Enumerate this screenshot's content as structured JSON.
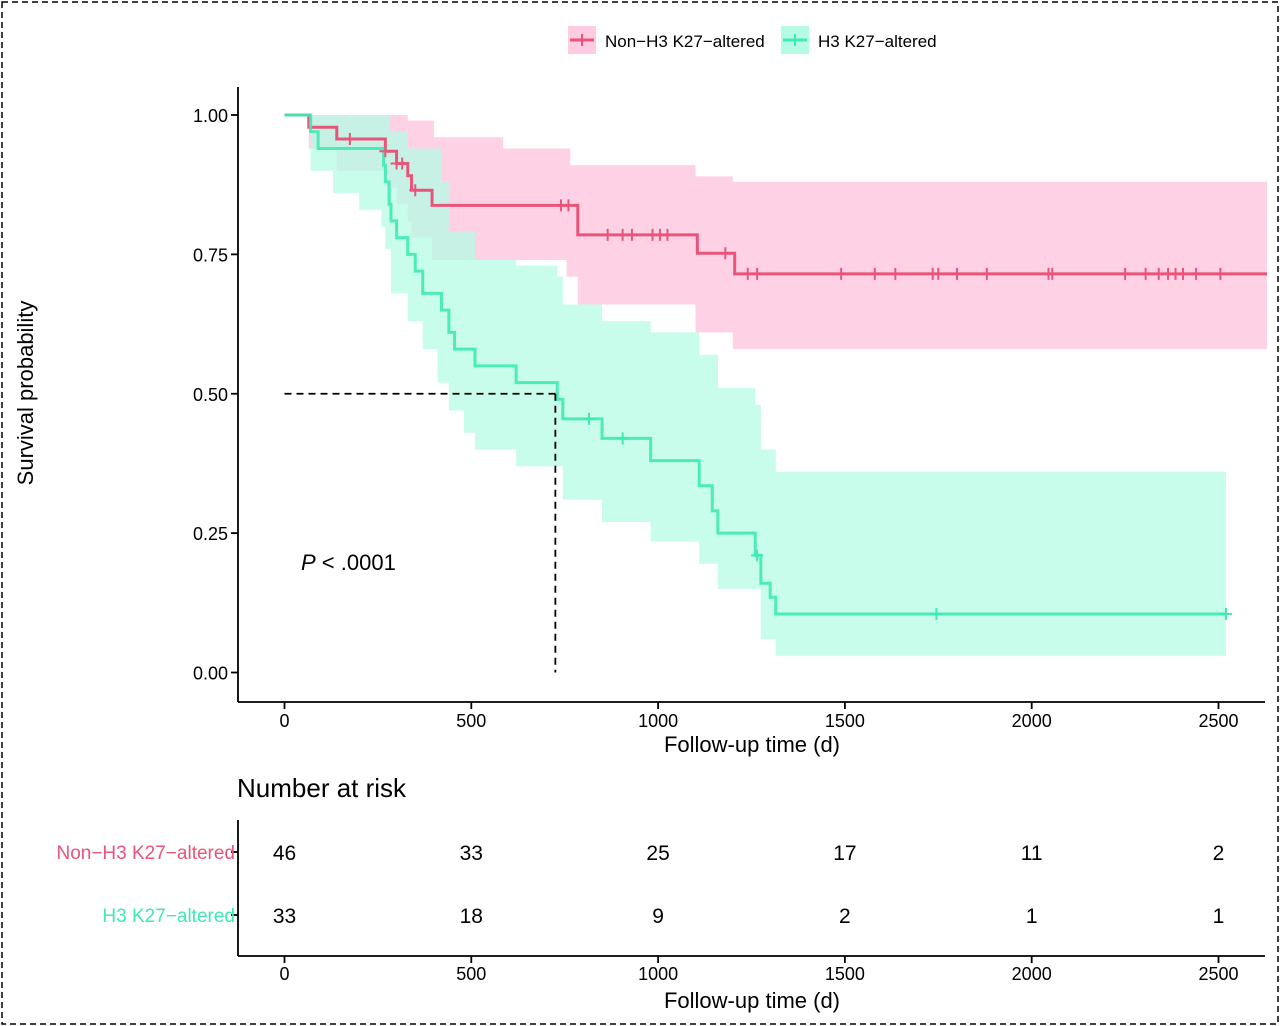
{
  "chart_data": {
    "type": "line",
    "subtype": "kaplan-meier",
    "title": "",
    "xlabel": "Follow-up time (d)",
    "ylabel": "Survival probability",
    "xlim": [
      -120,
      2630
    ],
    "ylim": [
      -0.05,
      1.05
    ],
    "xticks": [
      0,
      500,
      1000,
      1500,
      2000,
      2500
    ],
    "xtick_labels": [
      "0",
      "500",
      "1000",
      "1500",
      "2000",
      "2500"
    ],
    "yticks": [
      0,
      0.25,
      0.5,
      0.75,
      1.0
    ],
    "ytick_labels": [
      "0.00",
      "0.25",
      "0.50",
      "0.75",
      "1.00"
    ],
    "grid": false,
    "legend_position": "top",
    "annotation": {
      "italic": "P",
      "rest": " < .0001"
    },
    "median_line": {
      "x": 725,
      "y": 0.5
    },
    "series": [
      {
        "name": "Non−H3 K27−altered",
        "color": "#E8557A",
        "band_color": "#FFCCE2",
        "steps": [
          [
            0,
            1.0
          ],
          [
            65,
            0.978
          ],
          [
            140,
            0.957
          ],
          [
            270,
            0.935
          ],
          [
            300,
            0.913
          ],
          [
            330,
            0.891
          ],
          [
            340,
            0.865
          ],
          [
            395,
            0.838
          ],
          [
            755,
            0.838
          ],
          [
            785,
            0.785
          ],
          [
            1100,
            0.785
          ],
          [
            1105,
            0.752
          ],
          [
            1200,
            0.752
          ],
          [
            1205,
            0.715
          ],
          [
            2630,
            0.715
          ]
        ],
        "lower": [
          [
            0,
            1.0
          ],
          [
            65,
            0.94
          ],
          [
            140,
            0.9
          ],
          [
            270,
            0.87
          ],
          [
            300,
            0.84
          ],
          [
            330,
            0.81
          ],
          [
            340,
            0.78
          ],
          [
            395,
            0.74
          ],
          [
            755,
            0.71
          ],
          [
            785,
            0.66
          ],
          [
            1100,
            0.61
          ],
          [
            1200,
            0.58
          ],
          [
            2630,
            0.58
          ]
        ],
        "upper": [
          [
            0,
            1.0
          ],
          [
            260,
            1.0
          ],
          [
            330,
            0.99
          ],
          [
            400,
            0.96
          ],
          [
            585,
            0.94
          ],
          [
            765,
            0.91
          ],
          [
            1100,
            0.89
          ],
          [
            1200,
            0.88
          ],
          [
            2630,
            0.88
          ]
        ],
        "censors": [
          [
            175,
            0.957
          ],
          [
            270,
            0.935
          ],
          [
            300,
            0.913
          ],
          [
            315,
            0.913
          ],
          [
            350,
            0.865
          ],
          [
            740,
            0.838
          ],
          [
            760,
            0.838
          ],
          [
            865,
            0.785
          ],
          [
            905,
            0.785
          ],
          [
            930,
            0.785
          ],
          [
            985,
            0.785
          ],
          [
            1005,
            0.785
          ],
          [
            1025,
            0.785
          ],
          [
            1180,
            0.752
          ],
          [
            1240,
            0.715
          ],
          [
            1265,
            0.715
          ],
          [
            1490,
            0.715
          ],
          [
            1580,
            0.715
          ],
          [
            1635,
            0.715
          ],
          [
            1735,
            0.715
          ],
          [
            1750,
            0.715
          ],
          [
            1800,
            0.715
          ],
          [
            1880,
            0.715
          ],
          [
            2045,
            0.715
          ],
          [
            2055,
            0.715
          ],
          [
            2250,
            0.715
          ],
          [
            2305,
            0.715
          ],
          [
            2340,
            0.715
          ],
          [
            2365,
            0.715
          ],
          [
            2385,
            0.715
          ],
          [
            2405,
            0.715
          ],
          [
            2440,
            0.715
          ],
          [
            2505,
            0.715
          ]
        ]
      },
      {
        "name": "H3 K27−altered",
        "color": "#3EEAB4",
        "band_color": "#B5FBE4",
        "steps": [
          [
            0,
            1.0
          ],
          [
            70,
            0.97
          ],
          [
            90,
            0.94
          ],
          [
            260,
            0.94
          ],
          [
            265,
            0.91
          ],
          [
            270,
            0.88
          ],
          [
            280,
            0.84
          ],
          [
            285,
            0.81
          ],
          [
            300,
            0.78
          ],
          [
            330,
            0.75
          ],
          [
            350,
            0.72
          ],
          [
            370,
            0.68
          ],
          [
            420,
            0.65
          ],
          [
            440,
            0.61
          ],
          [
            455,
            0.58
          ],
          [
            510,
            0.55
          ],
          [
            620,
            0.52
          ],
          [
            730,
            0.49
          ],
          [
            745,
            0.455
          ],
          [
            850,
            0.42
          ],
          [
            980,
            0.38
          ],
          [
            1110,
            0.335
          ],
          [
            1145,
            0.29
          ],
          [
            1160,
            0.25
          ],
          [
            1260,
            0.21
          ],
          [
            1275,
            0.16
          ],
          [
            1300,
            0.135
          ],
          [
            1315,
            0.105
          ],
          [
            2520,
            0.105
          ]
        ],
        "lower": [
          [
            0,
            1.0
          ],
          [
            70,
            0.9
          ],
          [
            130,
            0.86
          ],
          [
            200,
            0.83
          ],
          [
            260,
            0.8
          ],
          [
            270,
            0.76
          ],
          [
            285,
            0.68
          ],
          [
            330,
            0.63
          ],
          [
            370,
            0.58
          ],
          [
            410,
            0.52
          ],
          [
            440,
            0.47
          ],
          [
            480,
            0.43
          ],
          [
            510,
            0.4
          ],
          [
            620,
            0.37
          ],
          [
            745,
            0.31
          ],
          [
            850,
            0.27
          ],
          [
            980,
            0.235
          ],
          [
            1110,
            0.195
          ],
          [
            1160,
            0.15
          ],
          [
            1275,
            0.06
          ],
          [
            1315,
            0.03
          ],
          [
            2520,
            0.03
          ]
        ],
        "upper": [
          [
            0,
            1.0
          ],
          [
            260,
            1.0
          ],
          [
            280,
            0.97
          ],
          [
            330,
            0.94
          ],
          [
            420,
            0.88
          ],
          [
            440,
            0.79
          ],
          [
            510,
            0.74
          ],
          [
            620,
            0.73
          ],
          [
            730,
            0.71
          ],
          [
            745,
            0.66
          ],
          [
            850,
            0.63
          ],
          [
            980,
            0.61
          ],
          [
            1110,
            0.57
          ],
          [
            1160,
            0.51
          ],
          [
            1260,
            0.48
          ],
          [
            1275,
            0.4
          ],
          [
            1315,
            0.36
          ],
          [
            2520,
            0.36
          ]
        ],
        "censors": [
          [
            815,
            0.455
          ],
          [
            905,
            0.42
          ],
          [
            1265,
            0.21
          ],
          [
            1745,
            0.105
          ],
          [
            2520,
            0.105
          ]
        ]
      }
    ],
    "risk_table": {
      "title": "Number at risk",
      "xlabel": "Follow-up time (d)",
      "times": [
        0,
        500,
        1000,
        1500,
        2000,
        2500
      ],
      "rows": [
        {
          "label": "Non−H3 K27−altered",
          "color": "#E8557A",
          "values": [
            "46",
            "33",
            "25",
            "17",
            "11",
            "2"
          ]
        },
        {
          "label": "H3 K27−altered",
          "color": "#3EEAB4",
          "values": [
            "33",
            "18",
            "9",
            "2",
            "1",
            "1"
          ]
        }
      ]
    }
  }
}
